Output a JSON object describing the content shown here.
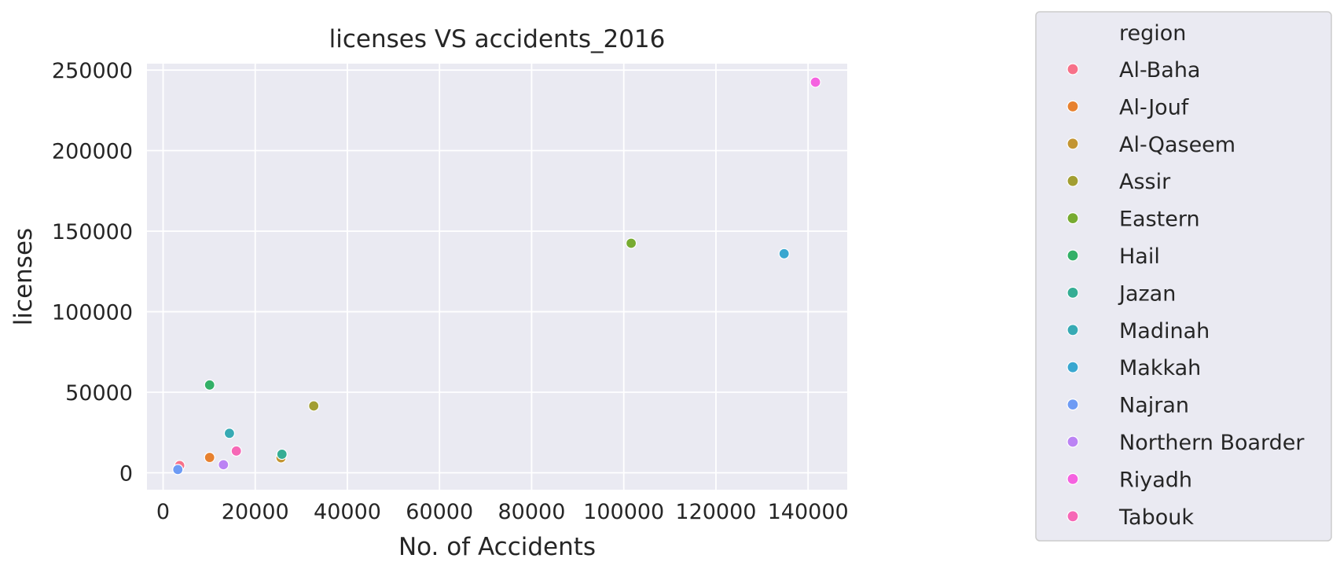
{
  "chart_data": {
    "type": "scatter",
    "title": "licenses VS accidents_2016",
    "xlabel": "No. of Accidents",
    "ylabel": "licenses",
    "xlim": [
      -3500,
      148500
    ],
    "ylim": [
      -10500,
      254000
    ],
    "xticks": [
      0,
      20000,
      40000,
      60000,
      80000,
      100000,
      120000,
      140000
    ],
    "yticks": [
      0,
      50000,
      100000,
      150000,
      200000,
      250000
    ],
    "grid": true,
    "background": "#eaeaf2",
    "grid_color": "#ffffff",
    "legend": {
      "title": "region",
      "placement": "outside-right"
    },
    "series": [
      {
        "name": "Al-Baha",
        "color": "#f77189",
        "x": 3600,
        "y": 4500
      },
      {
        "name": "Al-Jouf",
        "color": "#e7812f",
        "x": 10100,
        "y": 9500
      },
      {
        "name": "Al-Qaseem",
        "color": "#c39532",
        "x": 25600,
        "y": 9300
      },
      {
        "name": "Assir",
        "color": "#a29e32",
        "x": 32700,
        "y": 41500
      },
      {
        "name": "Eastern",
        "color": "#77ab31",
        "x": 101600,
        "y": 142500
      },
      {
        "name": "Hail",
        "color": "#33b067",
        "x": 10100,
        "y": 54500
      },
      {
        "name": "Jazan",
        "color": "#35ad94",
        "x": 25800,
        "y": 11500
      },
      {
        "name": "Madinah",
        "color": "#37aab4",
        "x": 14400,
        "y": 24500
      },
      {
        "name": "Makkah",
        "color": "#39a7d0",
        "x": 134800,
        "y": 136000
      },
      {
        "name": "Najran",
        "color": "#6e9bf4",
        "x": 3200,
        "y": 2000
      },
      {
        "name": "Northern Boarder",
        "color": "#bb83f4",
        "x": 13100,
        "y": 5000
      },
      {
        "name": "Riyadh",
        "color": "#f562e0",
        "x": 141600,
        "y": 242500
      },
      {
        "name": "Tabouk",
        "color": "#f668b6",
        "x": 15900,
        "y": 13500
      }
    ]
  }
}
